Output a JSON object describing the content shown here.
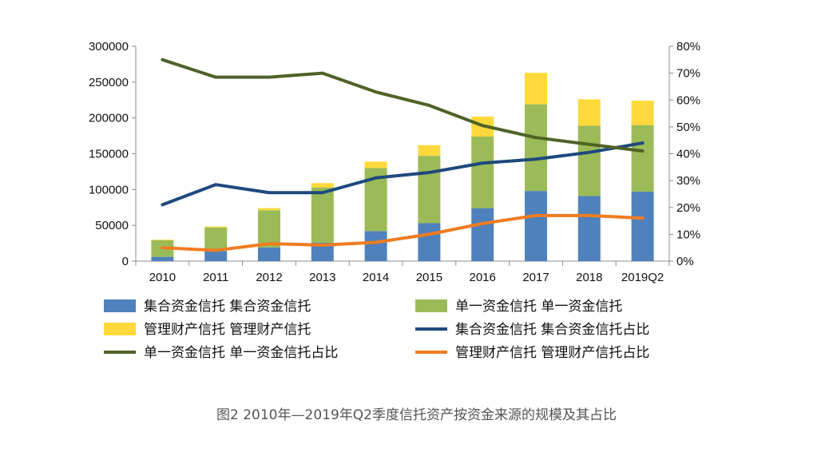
{
  "caption": "图2 2010年—2019年Q2季度信托资产按资金来源的规模及其占比",
  "chart_data": {
    "type": "bar",
    "stacked": true,
    "categories": [
      "2010",
      "2011",
      "2012",
      "2013",
      "2014",
      "2015",
      "2016",
      "2017",
      "2018",
      "2019Q2"
    ],
    "y_left": {
      "min": 0,
      "max": 300000,
      "ticks": [
        "0",
        "50000",
        "100000",
        "150000",
        "200000",
        "250000",
        "300000"
      ]
    },
    "y_right": {
      "min": 0,
      "max": 0.8,
      "ticks": [
        "0%",
        "10%",
        "20%",
        "30%",
        "40%",
        "50%",
        "60%",
        "70%",
        "80%"
      ]
    },
    "bar_series": [
      {
        "name": "集合资金信托 集合资金信托",
        "color": "#4f81bd",
        "values": [
          6000,
          14000,
          19000,
          26000,
          42000,
          53000,
          74000,
          98000,
          91000,
          97000
        ]
      },
      {
        "name": "单一资金信托 单一资金信托",
        "color": "#9bbb59",
        "values": [
          23000,
          33000,
          52000,
          77000,
          88000,
          94000,
          100000,
          121000,
          98000,
          93000
        ]
      },
      {
        "name": "管理财产信托 管理财产信托",
        "color": "#ffd93b",
        "values": [
          1000,
          1500,
          3000,
          6000,
          9000,
          15000,
          28000,
          44000,
          37000,
          34000
        ]
      }
    ],
    "line_series": [
      {
        "name": "集合资金信托 集合资金信托占比",
        "color": "#1f497d",
        "values": [
          0.21,
          0.285,
          0.255,
          0.255,
          0.31,
          0.33,
          0.365,
          0.38,
          0.405,
          0.44
        ]
      },
      {
        "name": "单一资金信托 单一资金信托占比",
        "color": "#4f6228",
        "values": [
          0.75,
          0.685,
          0.685,
          0.7,
          0.63,
          0.58,
          0.505,
          0.46,
          0.435,
          0.41
        ]
      },
      {
        "name": "管理财产信托 管理财产信托占比",
        "color": "#f07c21",
        "values": [
          0.05,
          0.04,
          0.065,
          0.06,
          0.07,
          0.1,
          0.14,
          0.17,
          0.17,
          0.16
        ]
      }
    ],
    "legend_placement": "bottom",
    "grid": false
  }
}
